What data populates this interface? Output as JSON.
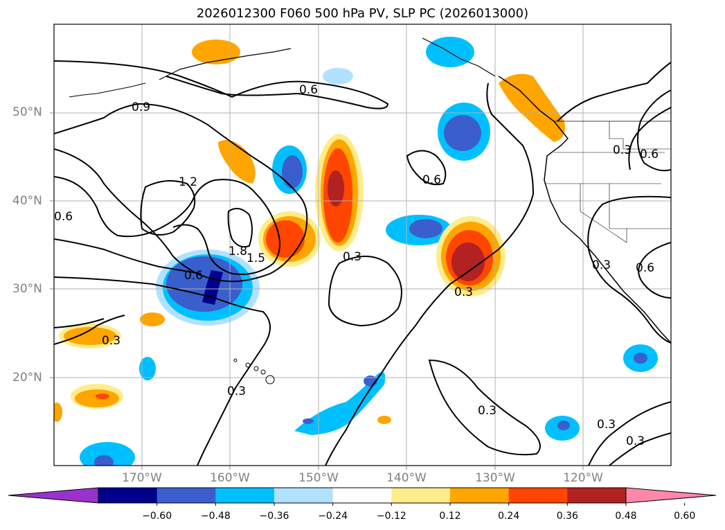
{
  "title": "2026012300 F060 500 hPa PV, SLP PC (2026013000)",
  "lat_labels": [
    "50°N",
    "40°N",
    "30°N",
    "20°N"
  ],
  "lon_labels": [
    "170°W",
    "160°W",
    "150°W",
    "140°W",
    "130°W",
    "120°W"
  ],
  "contour_labels": [
    "0.6",
    "0.9",
    "1.2",
    "0.6",
    "1.8",
    "1.5",
    "0.6",
    "0.3",
    "0.6",
    "0.3",
    "0.3",
    "0.3",
    "0.3",
    "0.3",
    "0.3",
    "0.3",
    "0.6",
    "0.3",
    "0.6"
  ],
  "colorbar": {
    "ticks": [
      "−0.60",
      "−0.48",
      "−0.36",
      "−0.24",
      "−0.12",
      "0.12",
      "0.24",
      "0.36",
      "0.48",
      "0.60"
    ],
    "colors": [
      "#9932cc",
      "#00008b",
      "#3a5fcd",
      "#00bfff",
      "#b0e2ff",
      "#ffffff",
      "#ffec8b",
      "#ffa500",
      "#ff4500",
      "#b22222",
      "#ff88aa"
    ]
  }
}
